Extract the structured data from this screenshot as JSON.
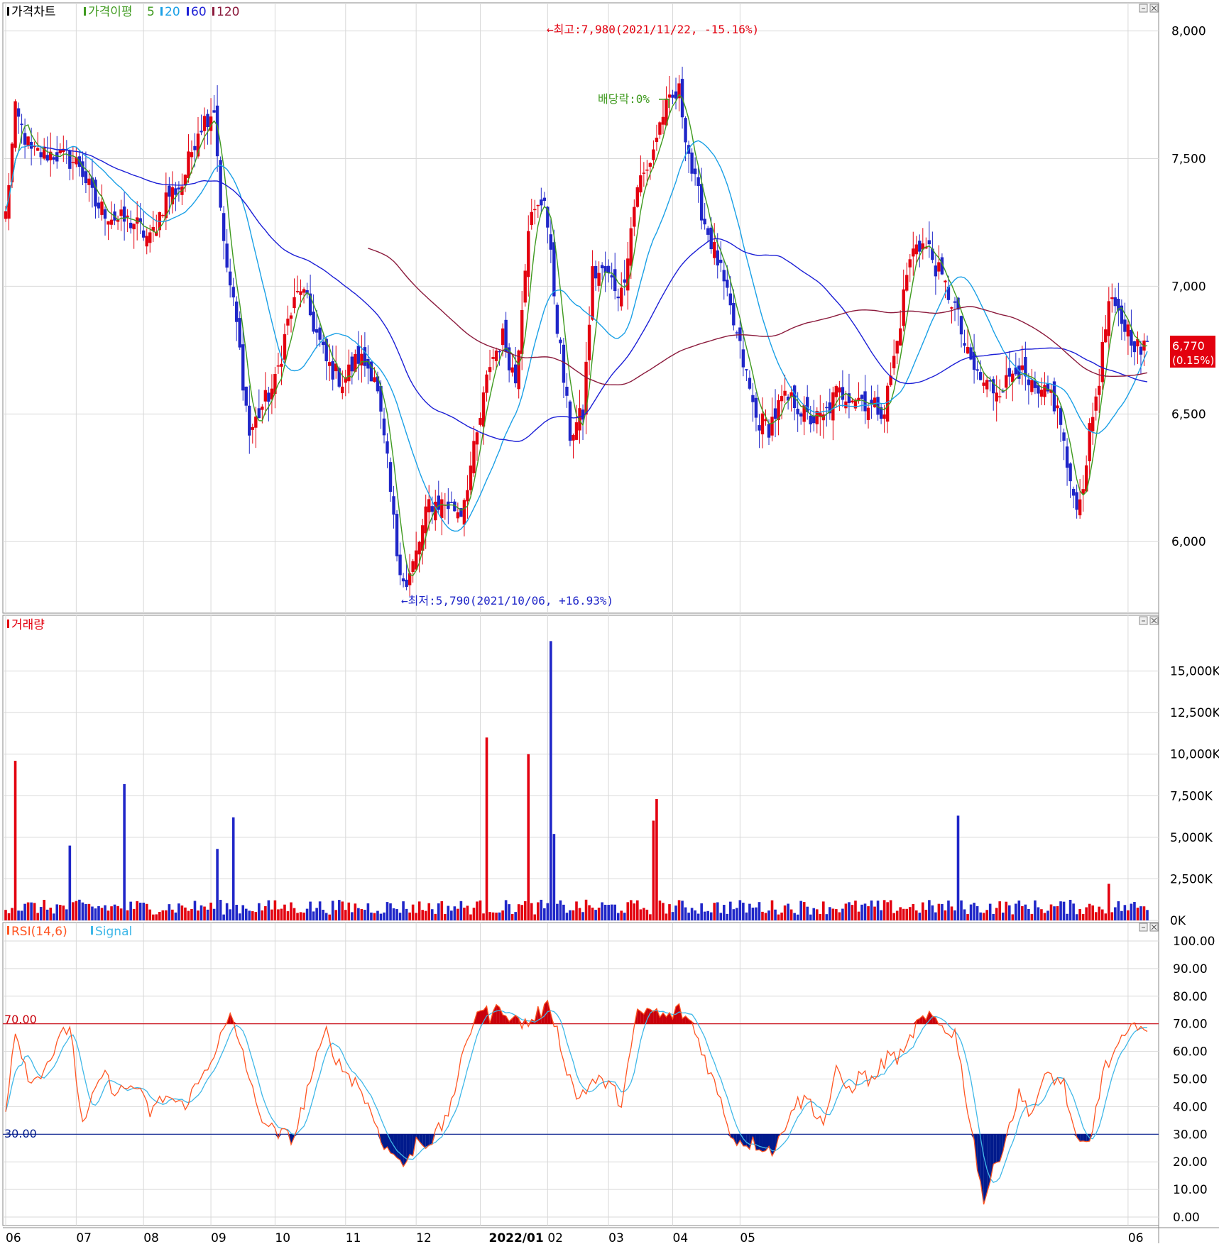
{
  "colors": {
    "up": "#e3000f",
    "down": "#1f26c8",
    "ma5": "#3f9a1f",
    "ma20": "#1aa0e6",
    "ma60": "#1c1fd6",
    "ma120": "#8b1a3c",
    "rsi": "#ff5522",
    "signal": "#40b8e8",
    "grid": "#d9d9d9",
    "ob": "#c8000b",
    "os": "#001a8c"
  },
  "price_panel": {
    "legend": {
      "price": "가격차트",
      "ma": "가격이평",
      "ma5": "5",
      "ma20": "20",
      "ma60": "60",
      "ma120": "120"
    },
    "yticks": [
      "8,000",
      "7,500",
      "7,000",
      "6,500",
      "6,000"
    ],
    "current": {
      "price": "6,770",
      "change": "(0.15%)"
    },
    "high_note": "←최고:7,980(2021/11/22, -15.16%)",
    "low_note": "←최저:5,790(2021/10/06, +16.93%)",
    "dividend_note": "배당락:0%"
  },
  "volume_panel": {
    "legend": "거래량",
    "yticks": [
      "15,000K",
      "12,500K",
      "10,000K",
      "7,500K",
      "5,000K",
      "2,500K",
      "0K"
    ]
  },
  "rsi_panel": {
    "legend_rsi": "RSI(14,6)",
    "legend_signal": "Signal",
    "yticks": [
      "100.00",
      "90.00",
      "80.00",
      "70.00",
      "60.00",
      "50.00",
      "40.00",
      "30.00",
      "20.00",
      "10.00",
      "0.00"
    ],
    "level_high": "70.00",
    "level_low": "30.00"
  },
  "xaxis": [
    "06",
    "07",
    "08",
    "09",
    "10",
    "11",
    "12",
    "2022/01",
    "02",
    "03",
    "04",
    "05",
    "06"
  ],
  "chart_data": [
    {
      "type": "candlestick",
      "title": "가격차트",
      "y_range": [
        5720,
        8110
      ],
      "anchors": [
        [
          0,
          7280
        ],
        [
          3,
          7680
        ],
        [
          8,
          7520
        ],
        [
          15,
          7520
        ],
        [
          23,
          7480
        ],
        [
          28,
          7320
        ],
        [
          35,
          7260
        ],
        [
          40,
          7250
        ],
        [
          45,
          7180
        ],
        [
          50,
          7350
        ],
        [
          55,
          7400
        ],
        [
          60,
          7620
        ],
        [
          65,
          7700
        ],
        [
          68,
          7150
        ],
        [
          72,
          6850
        ],
        [
          76,
          6420
        ],
        [
          80,
          6530
        ],
        [
          84,
          6620
        ],
        [
          88,
          6860
        ],
        [
          92,
          7000
        ],
        [
          96,
          6850
        ],
        [
          100,
          6700
        ],
        [
          105,
          6630
        ],
        [
          110,
          6720
        ],
        [
          115,
          6660
        ],
        [
          119,
          6300
        ],
        [
          122,
          5960
        ],
        [
          125,
          5820
        ],
        [
          128,
          5950
        ],
        [
          132,
          6150
        ],
        [
          137,
          6150
        ],
        [
          142,
          6120
        ],
        [
          147,
          6410
        ],
        [
          151,
          6700
        ],
        [
          155,
          6800
        ],
        [
          159,
          6630
        ],
        [
          163,
          7250
        ],
        [
          166,
          7300
        ],
        [
          168,
          7360
        ],
        [
          172,
          6850
        ],
        [
          176,
          6420
        ],
        [
          180,
          6500
        ],
        [
          183,
          7050
        ],
        [
          187,
          7050
        ],
        [
          192,
          6970
        ],
        [
          197,
          7400
        ],
        [
          200,
          7450
        ],
        [
          205,
          7680
        ],
        [
          210,
          7760
        ],
        [
          214,
          7450
        ],
        [
          218,
          7250
        ],
        [
          222,
          7100
        ],
        [
          226,
          6900
        ],
        [
          230,
          6700
        ],
        [
          234,
          6480
        ],
        [
          238,
          6450
        ],
        [
          242,
          6550
        ],
        [
          246,
          6550
        ],
        [
          250,
          6480
        ],
        [
          255,
          6480
        ],
        [
          259,
          6580
        ],
        [
          263,
          6580
        ],
        [
          267,
          6560
        ],
        [
          270,
          6530
        ],
        [
          274,
          6520
        ],
        [
          278,
          6780
        ],
        [
          281,
          7050
        ],
        [
          284,
          7180
        ],
        [
          288,
          7140
        ],
        [
          292,
          7020
        ],
        [
          296,
          6920
        ],
        [
          300,
          6720
        ],
        [
          304,
          6630
        ],
        [
          308,
          6600
        ],
        [
          312,
          6620
        ],
        [
          315,
          6700
        ],
        [
          318,
          6620
        ],
        [
          322,
          6560
        ],
        [
          326,
          6580
        ],
        [
          329,
          6470
        ],
        [
          332,
          6200
        ],
        [
          335,
          6150
        ],
        [
          338,
          6420
        ],
        [
          341,
          6650
        ],
        [
          344,
          6930
        ],
        [
          347,
          6880
        ],
        [
          350,
          6830
        ],
        [
          354,
          6740
        ],
        [
          356,
          6770
        ]
      ],
      "ma_periods": [
        5,
        20,
        60,
        120
      ],
      "annotations": {
        "high": {
          "date": "2021/11/22",
          "value": 7980
        },
        "low": {
          "date": "2021/10/06",
          "value": 5790
        }
      }
    },
    {
      "type": "bar",
      "title": "거래량",
      "unit": "K",
      "y_range": [
        0,
        17500
      ],
      "spikes": [
        [
          3,
          9600
        ],
        [
          20,
          4500
        ],
        [
          37,
          8200
        ],
        [
          66,
          4300
        ],
        [
          71,
          6200
        ],
        [
          150,
          11000
        ],
        [
          163,
          10000
        ],
        [
          170,
          16800
        ],
        [
          171,
          5200
        ],
        [
          202,
          6000
        ],
        [
          203,
          7300
        ],
        [
          297,
          6300
        ],
        [
          344,
          2200
        ]
      ]
    },
    {
      "type": "line",
      "title": "RSI(14,6)",
      "y_range": [
        0,
        100
      ],
      "levels": [
        70,
        30
      ],
      "anchors": [
        [
          0,
          40
        ],
        [
          3,
          68
        ],
        [
          8,
          48
        ],
        [
          14,
          58
        ],
        [
          20,
          70
        ],
        [
          24,
          32
        ],
        [
          30,
          52
        ],
        [
          35,
          45
        ],
        [
          40,
          48
        ],
        [
          45,
          38
        ],
        [
          50,
          44
        ],
        [
          55,
          40
        ],
        [
          60,
          48
        ],
        [
          65,
          60
        ],
        [
          70,
          72
        ],
        [
          74,
          60
        ],
        [
          78,
          40
        ],
        [
          84,
          30
        ],
        [
          90,
          29
        ],
        [
          95,
          50
        ],
        [
          100,
          67
        ],
        [
          104,
          55
        ],
        [
          110,
          48
        ],
        [
          115,
          35
        ],
        [
          119,
          24
        ],
        [
          122,
          22
        ],
        [
          125,
          18
        ],
        [
          128,
          28
        ],
        [
          132,
          27
        ],
        [
          137,
          34
        ],
        [
          142,
          55
        ],
        [
          147,
          76
        ],
        [
          151,
          73
        ],
        [
          155,
          76
        ],
        [
          159,
          71
        ],
        [
          163,
          70
        ],
        [
          166,
          74
        ],
        [
          170,
          76
        ],
        [
          174,
          58
        ],
        [
          178,
          43
        ],
        [
          183,
          49
        ],
        [
          187,
          49
        ],
        [
          192,
          42
        ],
        [
          197,
          73
        ],
        [
          201,
          75
        ],
        [
          206,
          72
        ],
        [
          210,
          75
        ],
        [
          214,
          70
        ],
        [
          218,
          58
        ],
        [
          222,
          45
        ],
        [
          227,
          28
        ],
        [
          232,
          27
        ],
        [
          236,
          26
        ],
        [
          240,
          24
        ],
        [
          245,
          40
        ],
        [
          250,
          43
        ],
        [
          255,
          34
        ],
        [
          259,
          52
        ],
        [
          263,
          46
        ],
        [
          267,
          52
        ],
        [
          270,
          49
        ],
        [
          275,
          58
        ],
        [
          280,
          58
        ],
        [
          284,
          70
        ],
        [
          289,
          72
        ],
        [
          293,
          68
        ],
        [
          296,
          67
        ],
        [
          300,
          40
        ],
        [
          305,
          6
        ],
        [
          310,
          23
        ],
        [
          316,
          44
        ],
        [
          320,
          38
        ],
        [
          325,
          52
        ],
        [
          330,
          48
        ],
        [
          334,
          26
        ],
        [
          338,
          26
        ],
        [
          342,
          52
        ],
        [
          347,
          62
        ],
        [
          351,
          67
        ],
        [
          354,
          72
        ],
        [
          356,
          67
        ]
      ]
    }
  ]
}
